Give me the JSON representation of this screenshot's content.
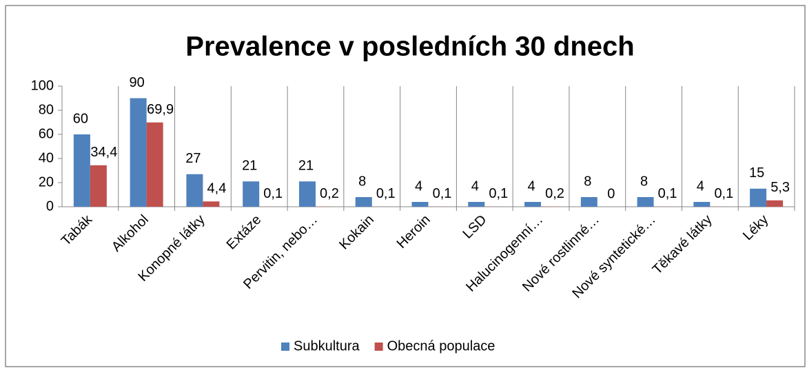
{
  "chart_data": {
    "type": "bar",
    "title": "Prevalence v posledních 30 dnech",
    "categories": [
      "Tabák",
      "Alkohol",
      "Konopné látky",
      "Extáze",
      "Pervitin, nebo…",
      "Kokain",
      "Heroin",
      "LSD",
      "Halucinogenní…",
      "Nové rostlinné…",
      "Nové syntetické…",
      "Těkavé látky",
      "Léky"
    ],
    "series": [
      {
        "name": "Subkultura",
        "color": "#4f81bd",
        "values": [
          60,
          90,
          27,
          21,
          21,
          8,
          4,
          4,
          4,
          8,
          8,
          4,
          15
        ]
      },
      {
        "name": "Obecná populace",
        "color": "#c0504d",
        "values": [
          34.4,
          69.9,
          4.4,
          0.1,
          0.2,
          0.1,
          0.1,
          0.1,
          0.2,
          0,
          0.1,
          0.1,
          5.3
        ],
        "value_labels": [
          "34,4",
          "69,9",
          "4,4",
          "0,1",
          "0,2",
          "0,1",
          "0,1",
          "0,1",
          "0,2",
          "0",
          "0,1",
          "0,1",
          "5,3"
        ]
      }
    ],
    "ylim": [
      0,
      100
    ],
    "yticks": [
      0,
      20,
      40,
      60,
      80,
      100
    ],
    "legend": "bottom"
  }
}
